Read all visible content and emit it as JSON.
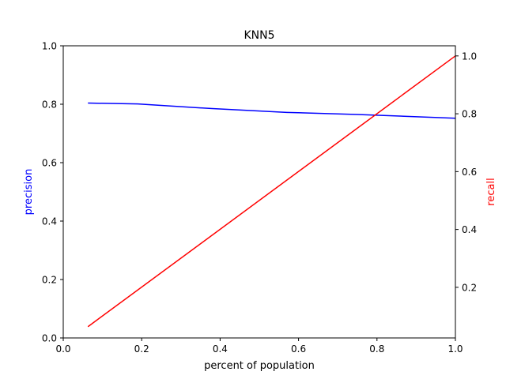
{
  "chart_data": {
    "type": "line",
    "title": "KNN5",
    "xlabel": "percent of population",
    "ylabel_left": "precision",
    "ylabel_right": "recall",
    "xlim": [
      0.0,
      1.0
    ],
    "ylim_left": [
      0.0,
      1.0
    ],
    "ylim_right": [
      0.025,
      1.035
    ],
    "x_ticks": [
      "0.0",
      "0.2",
      "0.4",
      "0.6",
      "0.8",
      "1.0"
    ],
    "y_left_ticks": [
      "0.0",
      "0.2",
      "0.4",
      "0.6",
      "0.8",
      "1.0"
    ],
    "y_right_ticks": [
      "0.2",
      "0.4",
      "0.6",
      "0.8",
      "1.0"
    ],
    "grid": false,
    "series": [
      {
        "name": "precision",
        "axis": "left",
        "color": "#0000ff",
        "x": [
          0.063,
          0.19,
          0.38,
          0.57,
          0.75,
          1.0
        ],
        "y": [
          0.804,
          0.801,
          0.785,
          0.772,
          0.765,
          0.752
        ]
      },
      {
        "name": "recall",
        "axis": "right",
        "color": "#ff0000",
        "x": [
          0.063,
          1.0
        ],
        "y": [
          0.064,
          1.0
        ]
      }
    ]
  }
}
